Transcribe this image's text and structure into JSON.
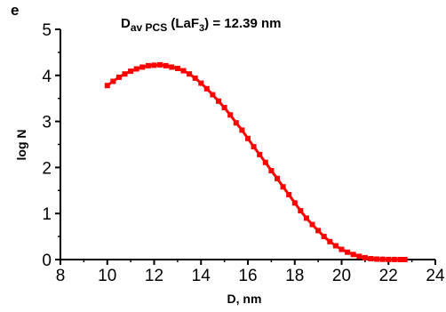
{
  "chart_data": {
    "type": "scatter",
    "panel_label": "e",
    "annotation": {
      "main": "D",
      "subscript": "av PCS",
      "open": " (LaF",
      "sub2": "3",
      "close": ") = 12.39 nm"
    },
    "xlabel": "D, nm",
    "ylabel": "log N",
    "xlim": [
      8,
      24
    ],
    "ylim": [
      0,
      5
    ],
    "xticks": [
      8,
      10,
      12,
      14,
      16,
      18,
      20,
      22,
      24
    ],
    "yticks": [
      0,
      1,
      2,
      3,
      4,
      5
    ],
    "grid": false,
    "series": [
      {
        "color": "#ff0000",
        "x": [
          10.0,
          10.25,
          10.5,
          10.75,
          11.0,
          11.25,
          11.5,
          11.75,
          12.0,
          12.25,
          12.5,
          12.75,
          13.0,
          13.25,
          13.5,
          13.75,
          14.0,
          14.25,
          14.5,
          14.75,
          15.0,
          15.25,
          15.5,
          15.75,
          16.0,
          16.25,
          16.5,
          16.75,
          17.0,
          17.25,
          17.5,
          17.75,
          18.0,
          18.25,
          18.5,
          18.75,
          19.0,
          19.25,
          19.5,
          19.75,
          20.0,
          20.25,
          20.5,
          20.75,
          21.0,
          21.25,
          21.5,
          21.75,
          22.0,
          22.25,
          22.5,
          22.7
        ],
        "y": [
          3.78,
          3.87,
          3.96,
          4.03,
          4.09,
          4.14,
          4.18,
          4.21,
          4.22,
          4.23,
          4.21,
          4.18,
          4.15,
          4.1,
          4.03,
          3.94,
          3.83,
          3.71,
          3.58,
          3.44,
          3.3,
          3.14,
          2.97,
          2.81,
          2.63,
          2.45,
          2.28,
          2.11,
          1.93,
          1.76,
          1.58,
          1.41,
          1.23,
          1.06,
          0.9,
          0.76,
          0.63,
          0.5,
          0.39,
          0.3,
          0.22,
          0.16,
          0.11,
          0.07,
          0.04,
          0.02,
          0.01,
          0.005,
          0.002,
          0.001,
          0.0,
          0.0
        ]
      }
    ]
  }
}
